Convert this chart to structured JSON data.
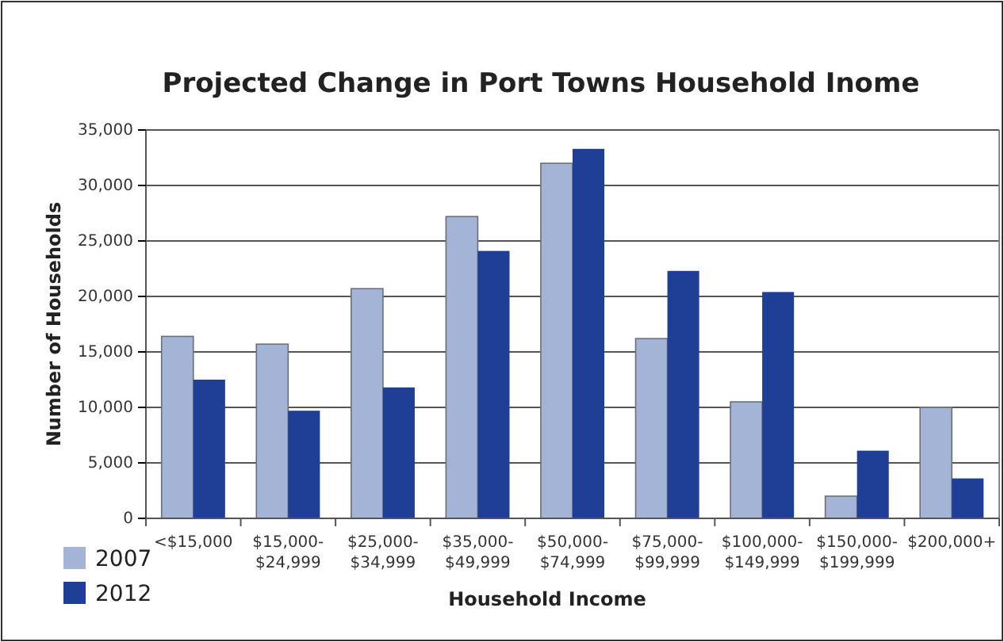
{
  "chart_data": {
    "type": "bar",
    "title": "Projected Change in Port Towns Household Inome",
    "xlabel": "Household Income",
    "ylabel": "Number of Households",
    "categories": [
      "<$15,000",
      "$15,000-\n$24,999",
      "$25,000-\n$34,999",
      "$35,000-\n$49,999",
      "$50,000-\n$74,999",
      "$75,000-\n$99,999",
      "$100,000-\n$149,999",
      "$150,000-\n$199,999",
      "$200,000+"
    ],
    "series": [
      {
        "name": "2007",
        "color": "#a4b4d6",
        "values": [
          16400,
          15700,
          20700,
          27200,
          32000,
          16200,
          10500,
          2000,
          10000
        ]
      },
      {
        "name": "2012",
        "color": "#1f3f96",
        "values": [
          12500,
          9700,
          11800,
          24100,
          33300,
          22300,
          20400,
          6100,
          3600
        ]
      }
    ],
    "ylim": [
      0,
      35000
    ],
    "yticks": [
      0,
      {
        "value": 5000,
        "label": "5,000"
      },
      {
        "value": 10000,
        "label": "10,000"
      },
      {
        "value": 15000,
        "label": "15,000"
      },
      {
        "value": 20000,
        "label": "20,000"
      },
      {
        "value": 25000,
        "label": "25,000"
      },
      {
        "value": 30000,
        "label": "30,000"
      },
      {
        "value": 35000,
        "label": "35,000"
      }
    ],
    "grid": "y",
    "legend": "bottom left"
  }
}
